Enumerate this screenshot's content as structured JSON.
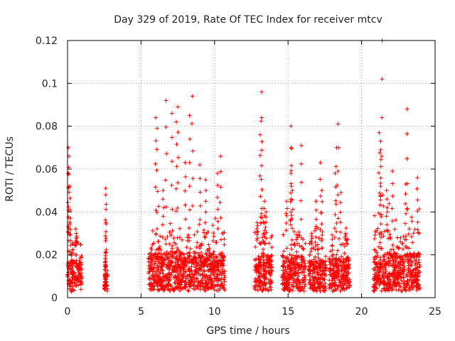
{
  "chart_data": {
    "type": "scatter",
    "title": "Day 329 of 2019, Rate Of TEC Index for receiver mtcv",
    "xlabel": "GPS time / hours",
    "ylabel": "ROTI / TECUs",
    "xlim": [
      0,
      25
    ],
    "ylim": [
      0,
      0.12
    ],
    "x_ticks": [
      "0",
      "5",
      "10",
      "15",
      "20",
      "25"
    ],
    "y_ticks": [
      "0",
      "0.02",
      "0.04",
      "0.06",
      "0.08",
      "0.1",
      "0.12"
    ],
    "grid": true,
    "marker": "plus",
    "color": "#ff0000",
    "clusters": [
      {
        "x_range": [
          0.0,
          1.0
        ],
        "y_base": 0.012,
        "peaks": [
          [
            0.05,
            0.07
          ],
          [
            0.1,
            0.066
          ],
          [
            0.05,
            0.058
          ],
          [
            0.15,
            0.052
          ],
          [
            0.2,
            0.037
          ],
          [
            0.6,
            0.03
          ]
        ]
      },
      {
        "x_range": [
          2.5,
          2.75
        ],
        "y_base": 0.007,
        "peaks": [
          [
            2.6,
            0.051
          ],
          [
            2.6,
            0.048
          ],
          [
            2.6,
            0.035
          ],
          [
            2.6,
            0.021
          ],
          [
            2.6,
            0.015
          ],
          [
            2.6,
            0.007
          ]
        ]
      },
      {
        "x_range": [
          5.5,
          10.7
        ],
        "y_base": 0.015,
        "peaks": [
          [
            6.0,
            0.084
          ],
          [
            6.1,
            0.079
          ],
          [
            6.7,
            0.092
          ],
          [
            7.1,
            0.086
          ],
          [
            7.5,
            0.089
          ],
          [
            7.4,
            0.082
          ],
          [
            8.5,
            0.094
          ],
          [
            8.3,
            0.085
          ],
          [
            8.0,
            0.063
          ],
          [
            9.0,
            0.062
          ],
          [
            10.4,
            0.066
          ],
          [
            10.2,
            0.058
          ],
          [
            6.5,
            0.05
          ],
          [
            9.4,
            0.055
          ]
        ]
      },
      {
        "x_range": [
          12.7,
          13.9
        ],
        "y_base": 0.014,
        "peaks": [
          [
            13.2,
            0.096
          ],
          [
            13.2,
            0.084
          ],
          [
            13.1,
            0.076
          ],
          [
            13.4,
            0.045
          ],
          [
            13.5,
            0.04
          ],
          [
            12.9,
            0.035
          ]
        ]
      },
      {
        "x_range": [
          14.6,
          16.2
        ],
        "y_base": 0.014,
        "peaks": [
          [
            15.2,
            0.08
          ],
          [
            15.2,
            0.07
          ],
          [
            15.9,
            0.071
          ],
          [
            15.2,
            0.058
          ],
          [
            15.3,
            0.05
          ],
          [
            14.9,
            0.045
          ]
        ]
      },
      {
        "x_range": [
          16.4,
          17.6
        ],
        "y_base": 0.012,
        "peaks": [
          [
            17.2,
            0.063
          ],
          [
            17.3,
            0.05
          ],
          [
            16.9,
            0.045
          ],
          [
            16.6,
            0.03
          ]
        ]
      },
      {
        "x_range": [
          17.8,
          19.2
        ],
        "y_base": 0.013,
        "peaks": [
          [
            18.4,
            0.081
          ],
          [
            18.3,
            0.07
          ],
          [
            18.2,
            0.058
          ],
          [
            18.6,
            0.049
          ],
          [
            18.9,
            0.03
          ]
        ]
      },
      {
        "x_range": [
          20.8,
          24.0
        ],
        "y_base": 0.015,
        "peaks": [
          [
            21.4,
            0.12
          ],
          [
            21.2,
            0.077
          ],
          [
            21.3,
            0.073
          ],
          [
            21.3,
            0.069
          ],
          [
            23.1,
            0.088
          ],
          [
            21.3,
            0.052
          ],
          [
            22.1,
            0.059
          ],
          [
            23.8,
            0.056
          ],
          [
            23.0,
            0.053
          ],
          [
            21.7,
            0.05
          ]
        ]
      }
    ]
  }
}
